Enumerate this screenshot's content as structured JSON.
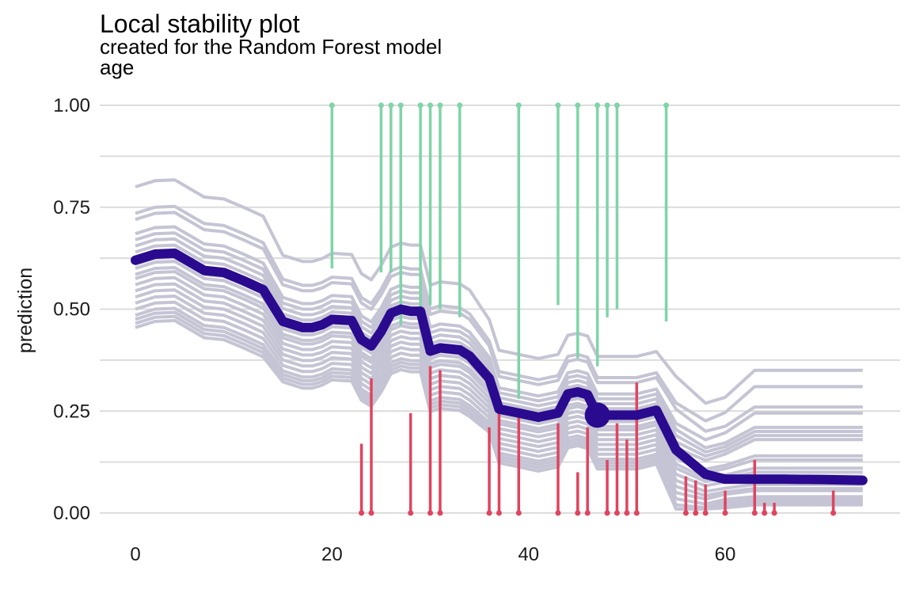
{
  "chart_data": {
    "type": "line",
    "title": "Local stability plot",
    "subtitle": "created for the Random Forest model",
    "facet_label": "age",
    "xlabel": "",
    "ylabel": "prediction",
    "xlim": [
      -5,
      78
    ],
    "ylim": [
      -0.03,
      1.0
    ],
    "xticks": [
      0,
      20,
      40,
      60
    ],
    "yticks": [
      0.0,
      0.25,
      0.5,
      0.75,
      1.0
    ],
    "ytick_labels": [
      "0.00",
      "0.25",
      "0.50",
      "0.75",
      "1.00"
    ],
    "grid": true,
    "legend": "none",
    "colors": {
      "profiles": "#c4c4d4",
      "main_profile": "#2a0a8f",
      "observation_point": "#2a0a8f",
      "residual_positive": "#7fd4a8",
      "residual_negative": "#e0445f",
      "grid": "#dcdcdc"
    },
    "x": [
      0,
      2,
      4,
      7,
      9,
      11,
      13,
      15,
      17,
      18,
      19,
      20,
      22,
      23,
      24,
      25,
      26,
      27,
      28,
      29,
      30,
      31,
      33,
      34,
      36,
      37,
      39,
      41,
      43,
      44,
      45,
      46,
      47,
      49,
      51,
      53,
      55,
      58,
      60,
      63,
      66,
      70,
      74
    ],
    "main_profile": [
      0.62,
      0.635,
      0.637,
      0.595,
      0.59,
      0.57,
      0.548,
      0.47,
      0.455,
      0.455,
      0.462,
      0.475,
      0.472,
      0.425,
      0.41,
      0.445,
      0.49,
      0.5,
      0.495,
      0.495,
      0.397,
      0.405,
      0.4,
      0.385,
      0.33,
      0.255,
      0.245,
      0.235,
      0.245,
      0.292,
      0.297,
      0.29,
      0.24,
      0.24,
      0.24,
      0.252,
      0.155,
      0.095,
      0.083,
      0.083,
      0.083,
      0.082,
      0.08
    ],
    "profile_offsets": [
      0.18,
      0.115,
      0.1,
      0.065,
      0.05,
      0.035,
      0.02,
      0.005,
      -0.01,
      -0.02,
      -0.035,
      -0.045,
      -0.06,
      -0.075,
      -0.09,
      -0.105,
      -0.12,
      -0.135,
      -0.145,
      -0.155,
      -0.165
    ],
    "profile_tail_levels": [
      0.35,
      0.31,
      0.26,
      0.245,
      0.21,
      0.2,
      0.19,
      0.18,
      0.14,
      0.13,
      0.11,
      0.1,
      0.09,
      0.07,
      0.06,
      0.055,
      0.04,
      0.035,
      0.03,
      0.025,
      0.02
    ],
    "observation": {
      "x": 47,
      "y": 0.24
    },
    "residuals": [
      {
        "x": 20,
        "y_start": 0.6,
        "y_end": 1.0,
        "sign": "positive"
      },
      {
        "x": 25,
        "y_start": 0.59,
        "y_end": 1.0,
        "sign": "positive"
      },
      {
        "x": 26,
        "y_start": 0.59,
        "y_end": 1.0,
        "sign": "positive"
      },
      {
        "x": 27,
        "y_start": 0.46,
        "y_end": 1.0,
        "sign": "positive"
      },
      {
        "x": 29,
        "y_start": 0.5,
        "y_end": 1.0,
        "sign": "positive"
      },
      {
        "x": 30,
        "y_start": 0.51,
        "y_end": 1.0,
        "sign": "positive"
      },
      {
        "x": 31,
        "y_start": 0.5,
        "y_end": 1.0,
        "sign": "positive"
      },
      {
        "x": 33,
        "y_start": 0.48,
        "y_end": 1.0,
        "sign": "positive"
      },
      {
        "x": 39,
        "y_start": 0.28,
        "y_end": 1.0,
        "sign": "positive"
      },
      {
        "x": 43,
        "y_start": 0.51,
        "y_end": 1.0,
        "sign": "positive"
      },
      {
        "x": 45,
        "y_start": 0.38,
        "y_end": 1.0,
        "sign": "positive"
      },
      {
        "x": 47,
        "y_start": 0.36,
        "y_end": 1.0,
        "sign": "positive"
      },
      {
        "x": 48,
        "y_start": 0.48,
        "y_end": 1.0,
        "sign": "positive"
      },
      {
        "x": 49,
        "y_start": 0.5,
        "y_end": 1.0,
        "sign": "positive"
      },
      {
        "x": 54,
        "y_start": 0.47,
        "y_end": 1.0,
        "sign": "positive"
      },
      {
        "x": 23,
        "y_start": 0.17,
        "y_end": 0.0,
        "sign": "negative"
      },
      {
        "x": 24,
        "y_start": 0.33,
        "y_end": 0.0,
        "sign": "negative"
      },
      {
        "x": 28,
        "y_start": 0.245,
        "y_end": 0.0,
        "sign": "negative"
      },
      {
        "x": 30,
        "y_start": 0.36,
        "y_end": 0.0,
        "sign": "negative"
      },
      {
        "x": 31,
        "y_start": 0.35,
        "y_end": 0.0,
        "sign": "negative"
      },
      {
        "x": 36,
        "y_start": 0.21,
        "y_end": 0.0,
        "sign": "negative"
      },
      {
        "x": 37,
        "y_start": 0.27,
        "y_end": 0.0,
        "sign": "negative"
      },
      {
        "x": 39,
        "y_start": 0.25,
        "y_end": 0.0,
        "sign": "negative"
      },
      {
        "x": 43,
        "y_start": 0.22,
        "y_end": 0.0,
        "sign": "negative"
      },
      {
        "x": 45,
        "y_start": 0.1,
        "y_end": 0.0,
        "sign": "negative"
      },
      {
        "x": 46,
        "y_start": 0.21,
        "y_end": 0.0,
        "sign": "negative"
      },
      {
        "x": 48,
        "y_start": 0.13,
        "y_end": 0.0,
        "sign": "negative"
      },
      {
        "x": 49,
        "y_start": 0.22,
        "y_end": 0.0,
        "sign": "negative"
      },
      {
        "x": 50,
        "y_start": 0.18,
        "y_end": 0.0,
        "sign": "negative"
      },
      {
        "x": 51,
        "y_start": 0.32,
        "y_end": 0.0,
        "sign": "negative"
      },
      {
        "x": 56,
        "y_start": 0.09,
        "y_end": 0.0,
        "sign": "negative"
      },
      {
        "x": 57,
        "y_start": 0.08,
        "y_end": 0.0,
        "sign": "negative"
      },
      {
        "x": 58,
        "y_start": 0.07,
        "y_end": 0.0,
        "sign": "negative"
      },
      {
        "x": 60,
        "y_start": 0.055,
        "y_end": 0.0,
        "sign": "negative"
      },
      {
        "x": 63,
        "y_start": 0.13,
        "y_end": 0.0,
        "sign": "negative"
      },
      {
        "x": 64,
        "y_start": 0.025,
        "y_end": 0.0,
        "sign": "negative"
      },
      {
        "x": 65,
        "y_start": 0.025,
        "y_end": 0.0,
        "sign": "negative"
      },
      {
        "x": 71,
        "y_start": 0.055,
        "y_end": 0.0,
        "sign": "negative"
      }
    ]
  }
}
